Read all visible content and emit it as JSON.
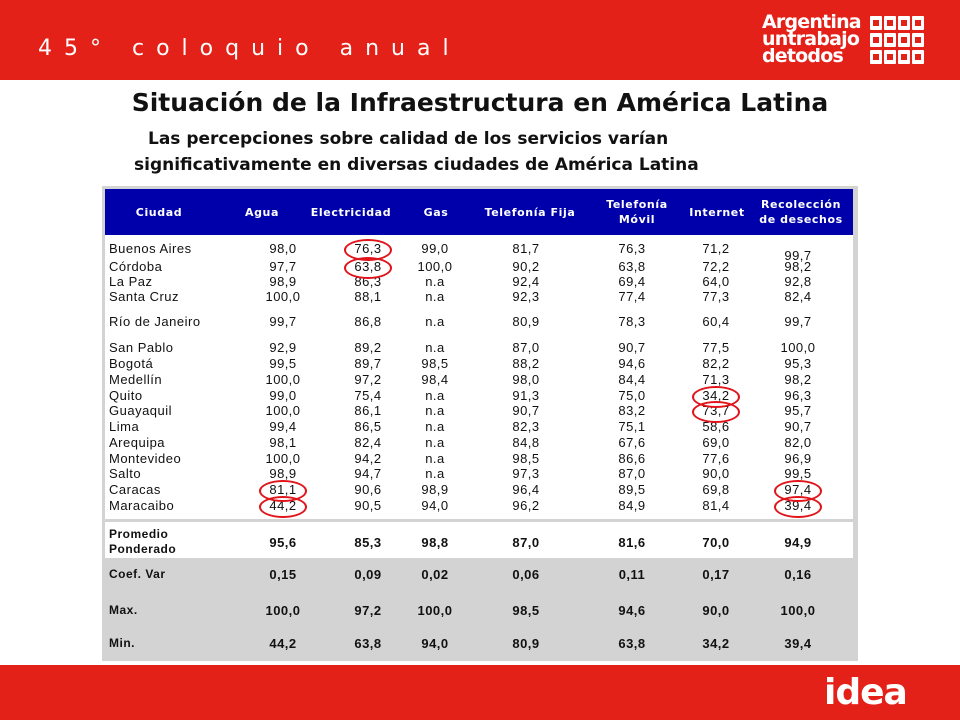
{
  "header": {
    "coloquio": "45° coloquio anual"
  },
  "logo": {
    "line1": "Argentina",
    "line2": "untrabajo",
    "line3": "detodos"
  },
  "footer": {
    "brand": "idea"
  },
  "title": "Situación de la Infraestructura en América Latina",
  "subtitle": {
    "line1": "Las percepciones sobre calidad de los servicios varían",
    "line2": "significativamente en diversas ciudades de América Latina"
  },
  "table": {
    "headers": [
      "Ciudad",
      "Agua",
      "Electricidad",
      "Gas",
      "Telefonía Fija",
      "Telefonía\nMóvil",
      "Internet",
      "Recolección\nde desechos"
    ],
    "rows": [
      [
        "Buenos Aires",
        "98,0",
        "76,3",
        "99,0",
        "81,7",
        "76,3",
        "71,2",
        "99,7"
      ],
      [
        "Córdoba",
        "97,7",
        "63,8",
        "100,0",
        "90,2",
        "63,8",
        "72,2",
        "98,2"
      ],
      [
        "La Paz",
        "98,9",
        "86,3",
        "n.a",
        "92,4",
        "69,4",
        "64,0",
        "92,8"
      ],
      [
        "Santa Cruz",
        "100,0",
        "88,1",
        "n.a",
        "92,3",
        "77,4",
        "77,3",
        "82,4"
      ],
      [
        "Río de Janeiro",
        "99,7",
        "86,8",
        "n.a",
        "80,9",
        "78,3",
        "60,4",
        "99,7"
      ],
      [
        "San Pablo",
        "92,9",
        "89,2",
        "n.a",
        "87,0",
        "90,7",
        "77,5",
        "100,0"
      ],
      [
        "Bogotá",
        "99,5",
        "89,7",
        "98,5",
        "88,2",
        "94,6",
        "82,2",
        "95,3"
      ],
      [
        "Medellín",
        "100,0",
        "97,2",
        "98,4",
        "98,0",
        "84,4",
        "71,3",
        "98,2"
      ],
      [
        "Quito",
        "99,0",
        "75,4",
        "n.a",
        "91,3",
        "75,0",
        "34,2",
        "96,3"
      ],
      [
        "Guayaquil",
        "100,0",
        "86,1",
        "n.a",
        "90,7",
        "83,2",
        "73,7",
        "95,7"
      ],
      [
        "Lima",
        "99,4",
        "86,5",
        "n.a",
        "82,3",
        "75,1",
        "58,6",
        "90,7"
      ],
      [
        "Arequipa",
        "98,1",
        "82,4",
        "n.a",
        "84,8",
        "67,6",
        "69,0",
        "82,0"
      ],
      [
        "Montevideo",
        "100,0",
        "94,2",
        "n.a",
        "98,5",
        "86,6",
        "77,6",
        "96,9"
      ],
      [
        "Salto",
        "98,9",
        "94,7",
        "n.a",
        "97,3",
        "87,0",
        "90,0",
        "99,5"
      ],
      [
        "Caracas",
        "81,1",
        "90,6",
        "98,9",
        "96,4",
        "89,5",
        "69,8",
        "97,4"
      ],
      [
        "Maracaibo",
        "44,2",
        "90,5",
        "94,0",
        "96,2",
        "84,9",
        "81,4",
        "39,4"
      ]
    ],
    "summary": [
      {
        "label": "Promedio\nPonderado",
        "values": [
          "95,6",
          "85,3",
          "98,8",
          "87,0",
          "81,6",
          "70,0",
          "94,9"
        ]
      },
      {
        "label": "Coef. Var",
        "values": [
          "0,15",
          "0,09",
          "0,02",
          "0,06",
          "0,11",
          "0,17",
          "0,16"
        ]
      },
      {
        "label": "Max.",
        "values": [
          "100,0",
          "97,2",
          "100,0",
          "98,5",
          "94,6",
          "90,0",
          "100,0"
        ]
      },
      {
        "label": "Min.",
        "values": [
          "44,2",
          "63,8",
          "94,0",
          "80,9",
          "63,8",
          "34,2",
          "39,4"
        ]
      }
    ]
  },
  "colors": {
    "brand_red": "#e32119",
    "header_blue": "#0000aa",
    "highlight": "#e0141a",
    "summary_gray": "#d3d3d3"
  }
}
